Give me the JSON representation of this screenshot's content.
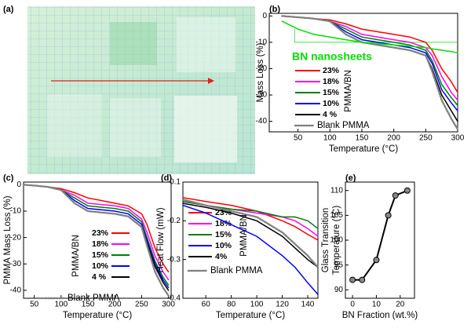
{
  "photo": {
    "label": "(a)"
  },
  "chart_data": [
    {
      "type": "line",
      "label": "(b)",
      "xlabel": "Temperature (°C)",
      "ylabel": "Mass Loss (%)",
      "legend_title": "PMMA/BN",
      "xlim": [
        5,
        300
      ],
      "ylim": [
        -44,
        1
      ],
      "xticks": [
        50,
        100,
        150,
        200,
        250,
        300
      ],
      "yticks": [
        0,
        -10,
        -20,
        -30,
        -40
      ],
      "x": [
        25,
        50,
        75,
        100,
        125,
        150,
        175,
        200,
        225,
        250,
        260,
        275,
        290,
        300
      ],
      "series": [
        {
          "name": "23%",
          "color": "#ff0000",
          "values": [
            0,
            -0.5,
            -1,
            -1.5,
            -3,
            -5,
            -6,
            -7,
            -8,
            -10,
            -13,
            -20,
            -25,
            -29
          ]
        },
        {
          "name": "18%",
          "color": "#ff00ff",
          "values": [
            0,
            -0.5,
            -1,
            -2,
            -4,
            -7,
            -8,
            -9,
            -10,
            -12,
            -15,
            -23,
            -29,
            -32
          ]
        },
        {
          "name": "15%",
          "color": "#008000",
          "values": [
            0,
            -0.5,
            -1,
            -2,
            -5,
            -8,
            -9,
            -10,
            -11,
            -13,
            -17,
            -26,
            -31,
            -34
          ]
        },
        {
          "name": "10%",
          "color": "#0000ff",
          "values": [
            0,
            -0.5,
            -1,
            -2,
            -6,
            -9,
            -10,
            -11,
            -12,
            -14,
            -18,
            -28,
            -33,
            -36
          ]
        },
        {
          "name": "4 %",
          "color": "#000000",
          "values": [
            0,
            -0.5,
            -1,
            -2,
            -7,
            -10,
            -11,
            -12,
            -13,
            -15,
            -20,
            -30,
            -36,
            -40
          ]
        },
        {
          "name": "Blank PMMA",
          "color": "#808080",
          "linestyle": "dotted",
          "values": [
            0,
            -0.5,
            -1,
            -2,
            -7,
            -10,
            -11,
            -12,
            -13,
            -15,
            -21,
            -32,
            -39,
            -43
          ]
        },
        {
          "name": "BN nanosheets",
          "color": "#00e000",
          "values": [
            -2,
            -5,
            -7,
            -8,
            -9,
            -10,
            -10.5,
            -11,
            -11.5,
            -12,
            -12.5,
            -13,
            -13.5,
            -14
          ]
        }
      ]
    },
    {
      "type": "line",
      "label": "(c)",
      "xlabel": "Temperature (°C)",
      "ylabel": "PMMA Mass Loss (%)",
      "legend_title": "PMMA/BN",
      "xlim": [
        30,
        305
      ],
      "ylim": [
        -43,
        1
      ],
      "xticks": [
        50,
        100,
        150,
        200,
        250,
        300
      ],
      "yticks": [
        0,
        -10,
        -20,
        -30,
        -40
      ],
      "x": [
        30,
        50,
        75,
        100,
        125,
        150,
        175,
        200,
        225,
        250,
        260,
        275,
        290,
        300
      ],
      "series": [
        {
          "name": "23%",
          "color": "#ff0000",
          "values": [
            0,
            -0.3,
            -0.8,
            -1.5,
            -3,
            -5,
            -6,
            -7,
            -8,
            -11,
            -15,
            -24,
            -30,
            -33
          ]
        },
        {
          "name": "18%",
          "color": "#ff00ff",
          "values": [
            0,
            -0.3,
            -0.8,
            -2,
            -4,
            -7,
            -7.5,
            -8,
            -9,
            -13,
            -18,
            -27,
            -33,
            -36
          ]
        },
        {
          "name": "15%",
          "color": "#008000",
          "values": [
            0,
            -0.3,
            -0.8,
            -2,
            -5,
            -8,
            -8.5,
            -9,
            -10,
            -14,
            -20,
            -29,
            -35,
            -38
          ]
        },
        {
          "name": "10%",
          "color": "#0000ff",
          "values": [
            0,
            -0.3,
            -0.8,
            -2,
            -6,
            -9,
            -9.5,
            -10,
            -11,
            -15,
            -21,
            -30,
            -36,
            -39
          ]
        },
        {
          "name": "4 %",
          "color": "#000000",
          "values": [
            0,
            -0.3,
            -0.8,
            -2,
            -7,
            -10,
            -10.5,
            -11,
            -12,
            -16,
            -22,
            -31,
            -37,
            -40
          ]
        },
        {
          "name": "Blank PMMA",
          "color": "#808080",
          "linestyle": "dotted",
          "values": [
            0,
            -0.3,
            -0.8,
            -2,
            -7,
            -10,
            -10.5,
            -11,
            -12,
            -16,
            -23,
            -33,
            -39,
            -42
          ]
        }
      ]
    },
    {
      "type": "line",
      "label": "(d)",
      "xlabel": "Temperature (°C)",
      "ylabel": "Heat Flow (mW)",
      "legend_title": "PMMA/BN",
      "xlim": [
        42,
        148
      ],
      "ylim": [
        -0.4,
        -0.1
      ],
      "xticks": [
        60,
        80,
        100,
        120,
        140
      ],
      "yticks": [
        -0.1,
        -0.2,
        -0.3,
        -0.4
      ],
      "x": [
        42,
        60,
        80,
        100,
        120,
        130,
        140,
        148
      ],
      "series": [
        {
          "name": "23%",
          "color": "#ff0000",
          "values": [
            -0.14,
            -0.15,
            -0.16,
            -0.175,
            -0.2,
            -0.215,
            -0.235,
            -0.25
          ]
        },
        {
          "name": "18%",
          "color": "#ff00ff",
          "values": [
            -0.15,
            -0.16,
            -0.17,
            -0.18,
            -0.19,
            -0.2,
            -0.22,
            -0.24
          ]
        },
        {
          "name": "15%",
          "color": "#008000",
          "values": [
            -0.15,
            -0.16,
            -0.17,
            -0.175,
            -0.19,
            -0.19,
            -0.2,
            -0.22
          ]
        },
        {
          "name": "10%",
          "color": "#0000ff",
          "values": [
            -0.16,
            -0.18,
            -0.21,
            -0.24,
            -0.29,
            -0.32,
            -0.36,
            -0.39
          ]
        },
        {
          "name": "4%",
          "color": "#000000",
          "values": [
            -0.155,
            -0.165,
            -0.18,
            -0.2,
            -0.24,
            -0.27,
            -0.3,
            -0.32
          ]
        },
        {
          "name": "Blank PMMA",
          "color": "#808080",
          "linestyle": "dotted",
          "values": [
            -0.145,
            -0.16,
            -0.175,
            -0.19,
            -0.23,
            -0.26,
            -0.29,
            -0.32
          ]
        }
      ]
    },
    {
      "type": "scatter",
      "label": "(e)",
      "xlabel": "BN Fraction (wt.%)",
      "ylabel": [
        "Glass Transition",
        "Temperature (°C)"
      ],
      "xlim": [
        -3,
        26
      ],
      "ylim": [
        88.3,
        111.7
      ],
      "xticks": [
        0,
        10,
        20
      ],
      "yticks": [
        90,
        95,
        100,
        105,
        110
      ],
      "color": "#000000",
      "x": [
        0,
        4,
        10,
        15,
        18,
        23
      ],
      "values": [
        92,
        92,
        96,
        105,
        109,
        110
      ]
    }
  ]
}
